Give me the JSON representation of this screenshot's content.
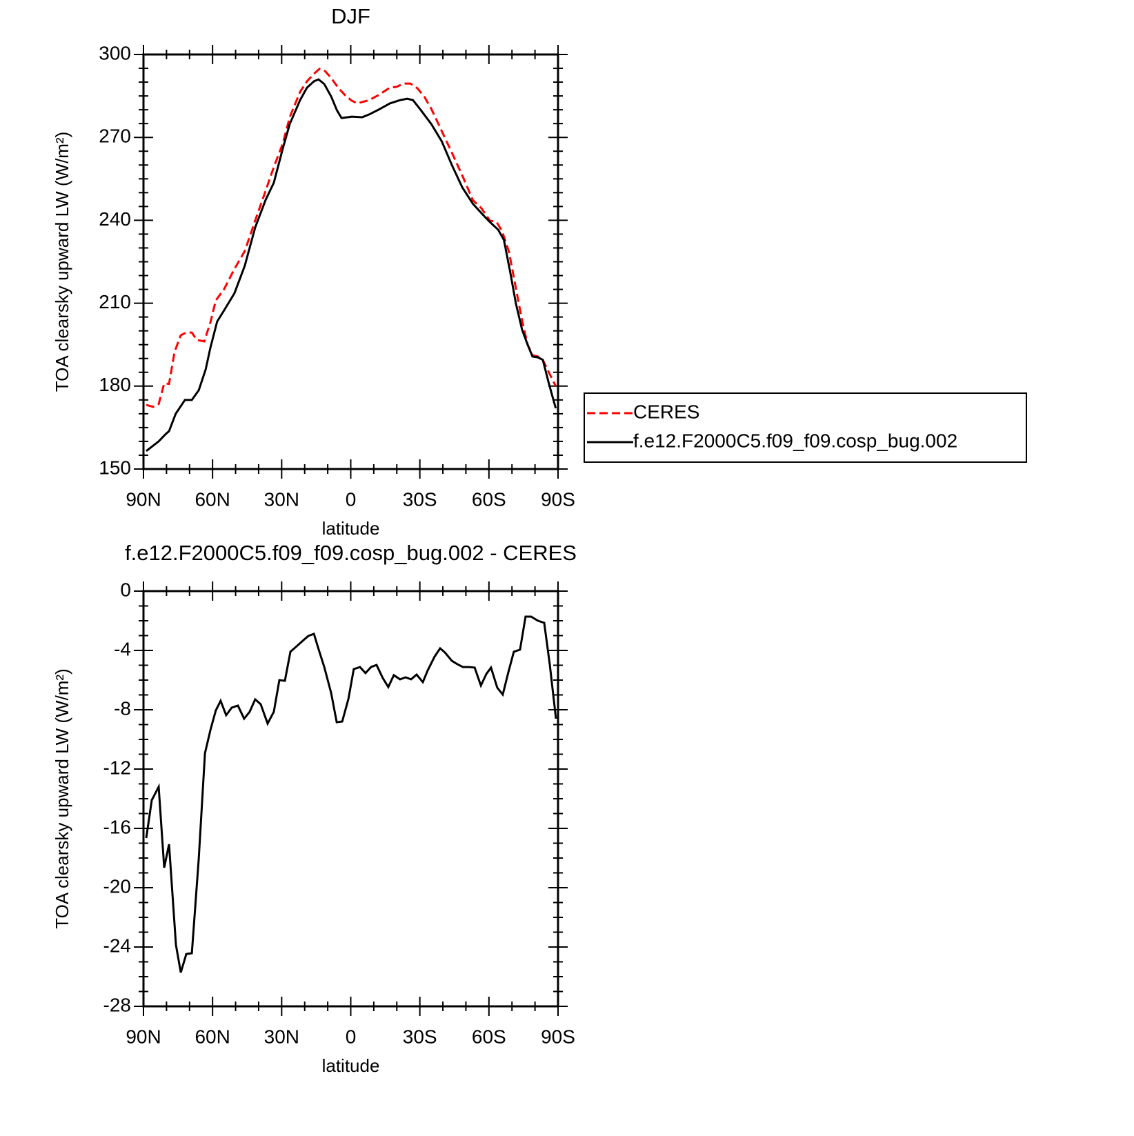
{
  "chart_data": [
    {
      "type": "line",
      "title": "DJF",
      "y_label": "TOA clearsky upward LW (W/m²)",
      "x_label": "latitude",
      "xlim": [
        90,
        -90
      ],
      "xticks": [
        {
          "value": 90,
          "label": "90N"
        },
        {
          "value": 60,
          "label": "60N"
        },
        {
          "value": 30,
          "label": "30N"
        },
        0,
        {
          "value": -30,
          "label": "30S"
        },
        {
          "value": -60,
          "label": "60S"
        },
        {
          "value": -90,
          "label": "90S"
        }
      ],
      "ylim": [
        150,
        300
      ],
      "yticks": [
        150,
        180,
        210,
        240,
        270,
        300
      ],
      "x_minor_per_interval": 3,
      "y_minor_per_interval": 6,
      "legend": "right",
      "series": [
        {
          "name": "CERES",
          "color": "#ff0000",
          "line_style": "dashed",
          "x": [
            88.8,
            85.8,
            83.4,
            81,
            78.9,
            76.5,
            73.8,
            71.4,
            69,
            66.9,
            63.6,
            60.9,
            58.6,
            55,
            50.5,
            46,
            41.5,
            37,
            33.4,
            29.5,
            26.5,
            22,
            19,
            16,
            13.6,
            11.5,
            8.5,
            5.5,
            2.5,
            -0.4,
            -2.8,
            -8,
            -12,
            -17,
            -19.9,
            -22.9,
            -25.9,
            -28.9,
            -31.9,
            -35,
            -39.5,
            -44,
            -48.5,
            -53,
            -56.8,
            -60.4,
            -63.3,
            -65.7,
            -68.7,
            -71.7,
            -74.4,
            -76.8,
            -78.9,
            -81.3,
            -83.4,
            -86,
            -89
          ],
          "values": [
            173.2,
            172.5,
            173.5,
            181,
            180.8,
            192.4,
            198.4,
            199.4,
            199.4,
            196.7,
            196.2,
            203.2,
            211,
            215.1,
            222.4,
            228.9,
            239.9,
            250.6,
            259.3,
            267.8,
            277.3,
            286.5,
            290.3,
            293,
            294.8,
            294.3,
            291.5,
            288,
            285.3,
            283.3,
            282.3,
            283.5,
            285.3,
            288,
            288.3,
            289.5,
            289.5,
            287.8,
            284.8,
            280.3,
            272.3,
            264.3,
            256.1,
            247.3,
            244.3,
            239.9,
            239.4,
            236.1,
            228.6,
            215.4,
            203.7,
            195,
            191.2,
            190.7,
            189.5,
            185,
            180
          ]
        },
        {
          "name": "f.e12.F2000C5.f09_f09.cosp_bug.002",
          "color": "#000000",
          "line_style": "solid",
          "x": [
            88.8,
            83.4,
            80.4,
            78.9,
            76,
            72,
            69,
            66,
            63,
            61,
            58,
            55,
            50.5,
            46,
            41.5,
            37,
            33.4,
            29.5,
            26.5,
            22,
            19,
            16,
            14,
            11.5,
            8.5,
            6,
            4,
            -0.5,
            -5,
            -8,
            -12,
            -17,
            -21.5,
            -24.5,
            -27,
            -30.5,
            -35,
            -39.5,
            -44,
            -48.5,
            -53,
            -57.5,
            -60.4,
            -64,
            -66.5,
            -69.3,
            -71.7,
            -74.4,
            -76.8,
            -78.9,
            -81.3,
            -83.4,
            -86,
            -89
          ],
          "values": [
            156.5,
            160,
            162.6,
            163.7,
            170,
            175,
            175,
            178.5,
            186,
            193.7,
            203.4,
            207.4,
            213.6,
            223.6,
            237.4,
            247.3,
            253.6,
            266,
            274.8,
            283.5,
            288,
            290.3,
            291,
            289.3,
            284.8,
            279.8,
            277,
            277.5,
            277.3,
            278.3,
            280,
            282.3,
            283.5,
            284,
            283.5,
            279.8,
            274.8,
            268.6,
            259.8,
            251.8,
            246,
            241.9,
            239.4,
            236.6,
            232.9,
            221,
            209.9,
            200.4,
            195,
            190.7,
            190.4,
            189.5,
            181,
            172
          ]
        }
      ]
    },
    {
      "type": "line",
      "title": "f.e12.F2000C5.f09_f09.cosp_bug.002 - CERES",
      "y_label": "TOA clearsky upward LW (W/m²)",
      "x_label": "latitude",
      "xlim": [
        90,
        -90
      ],
      "xticks": [
        {
          "value": 90,
          "label": "90N"
        },
        {
          "value": 60,
          "label": "60N"
        },
        {
          "value": 30,
          "label": "30N"
        },
        0,
        {
          "value": -30,
          "label": "30S"
        },
        {
          "value": -60,
          "label": "60S"
        },
        {
          "value": -90,
          "label": "90S"
        }
      ],
      "ylim": [
        -28,
        0
      ],
      "yticks": [
        -28,
        -24,
        -20,
        -16,
        -12,
        -8,
        -4,
        0
      ],
      "x_minor_per_interval": 3,
      "y_minor_per_interval": 4,
      "color": "#000000",
      "x": [
        88.8,
        86.4,
        83.4,
        81,
        78.9,
        75.9,
        73.8,
        71.4,
        69,
        66,
        63.3,
        60.9,
        58.6,
        56.5,
        54.1,
        51.7,
        49,
        46.3,
        43.9,
        41.5,
        39.1,
        36.1,
        33.4,
        31,
        28.6,
        26.2,
        23.5,
        20.5,
        18.4,
        16,
        13.9,
        11.5,
        8.5,
        6.1,
        3.7,
        1,
        -1.3,
        -4,
        -6.4,
        -8.8,
        -11.2,
        -13.9,
        -16.3,
        -18.7,
        -21.4,
        -23.8,
        -26.2,
        -28.6,
        -31.3,
        -33.4,
        -36.4,
        -38.8,
        -40.9,
        -43.9,
        -46.3,
        -48.7,
        -51.4,
        -53.8,
        -56.5,
        -58.9,
        -60.9,
        -63.6,
        -66,
        -68.4,
        -70.8,
        -73.5,
        -75.9,
        -78.3,
        -81.3,
        -84,
        -86.4,
        -89.1
      ],
      "values": [
        -16.65,
        -14.1,
        -13.2,
        -18.65,
        -17.07,
        -23.86,
        -25.72,
        -24.47,
        -24.42,
        -18.05,
        -10.93,
        -9.35,
        -8.05,
        -7.4,
        -8.37,
        -7.86,
        -7.72,
        -8.6,
        -8.14,
        -7.3,
        -7.63,
        -8.93,
        -8.14,
        -6.0,
        -6.05,
        -4.09,
        -3.72,
        -3.3,
        -3.02,
        -2.88,
        -3.95,
        -5.12,
        -6.88,
        -8.84,
        -8.79,
        -7.26,
        -5.26,
        -5.12,
        -5.53,
        -5.12,
        -4.98,
        -5.86,
        -6.47,
        -5.67,
        -5.95,
        -5.81,
        -5.95,
        -5.63,
        -6.14,
        -5.35,
        -4.42,
        -3.86,
        -4.14,
        -4.7,
        -4.93,
        -5.12,
        -5.12,
        -5.16,
        -6.37,
        -5.58,
        -5.16,
        -6.51,
        -6.98,
        -5.49,
        -4.09,
        -3.95,
        -1.72,
        -1.72,
        -2.0,
        -2.14,
        -4.93,
        -8.6
      ]
    }
  ]
}
